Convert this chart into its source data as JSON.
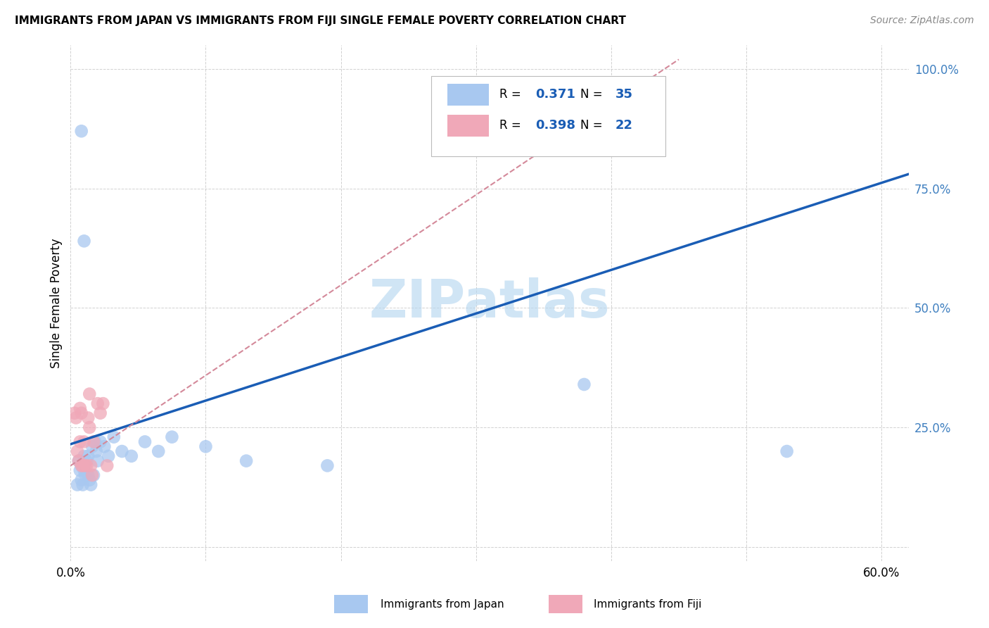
{
  "title": "IMMIGRANTS FROM JAPAN VS IMMIGRANTS FROM FIJI SINGLE FEMALE POVERTY CORRELATION CHART",
  "source": "Source: ZipAtlas.com",
  "ylabel": "Single Female Poverty",
  "x_ticks": [
    0.0,
    0.1,
    0.2,
    0.3,
    0.4,
    0.5,
    0.6
  ],
  "x_tick_labels": [
    "0.0%",
    "",
    "",
    "",
    "",
    "",
    "60.0%"
  ],
  "y_ticks": [
    0.0,
    0.25,
    0.5,
    0.75,
    1.0
  ],
  "y_tick_labels": [
    "",
    "25.0%",
    "50.0%",
    "75.0%",
    "100.0%"
  ],
  "xlim": [
    0.0,
    0.62
  ],
  "ylim": [
    -0.03,
    1.05
  ],
  "japan_R": 0.371,
  "japan_N": 35,
  "fiji_R": 0.398,
  "fiji_N": 22,
  "japan_color": "#a8c8f0",
  "fiji_color": "#f0a8b8",
  "japan_line_color": "#1a5db5",
  "fiji_line_color": "#d4899a",
  "watermark": "ZIPatlas",
  "watermark_color": "#b8d8f0",
  "japan_line_x0": 0.0,
  "japan_line_y0": 0.215,
  "japan_line_x1": 0.62,
  "japan_line_y1": 0.78,
  "fiji_line_x0": 0.0,
  "fiji_line_y0": 0.17,
  "fiji_line_x1": 0.45,
  "fiji_line_y1": 1.02,
  "japan_x": [
    0.005,
    0.006,
    0.007,
    0.008,
    0.008,
    0.009,
    0.01,
    0.01,
    0.011,
    0.012,
    0.013,
    0.013,
    0.014,
    0.015,
    0.016,
    0.017,
    0.018,
    0.019,
    0.02,
    0.022,
    0.025,
    0.028,
    0.032,
    0.038,
    0.045,
    0.055,
    0.065,
    0.075,
    0.1,
    0.13,
    0.19,
    0.38,
    0.53,
    0.01,
    0.008
  ],
  "japan_y": [
    0.13,
    0.18,
    0.16,
    0.14,
    0.17,
    0.13,
    0.16,
    0.19,
    0.15,
    0.18,
    0.15,
    0.19,
    0.14,
    0.13,
    0.21,
    0.15,
    0.22,
    0.2,
    0.18,
    0.22,
    0.21,
    0.19,
    0.23,
    0.2,
    0.19,
    0.22,
    0.2,
    0.23,
    0.21,
    0.18,
    0.17,
    0.34,
    0.2,
    0.64,
    0.87
  ],
  "fiji_x": [
    0.003,
    0.004,
    0.005,
    0.006,
    0.007,
    0.007,
    0.008,
    0.008,
    0.009,
    0.01,
    0.011,
    0.012,
    0.013,
    0.014,
    0.014,
    0.015,
    0.016,
    0.017,
    0.02,
    0.022,
    0.024,
    0.027
  ],
  "fiji_y": [
    0.28,
    0.27,
    0.2,
    0.18,
    0.22,
    0.29,
    0.17,
    0.28,
    0.17,
    0.22,
    0.17,
    0.17,
    0.27,
    0.25,
    0.32,
    0.17,
    0.15,
    0.22,
    0.3,
    0.28,
    0.3,
    0.17
  ]
}
